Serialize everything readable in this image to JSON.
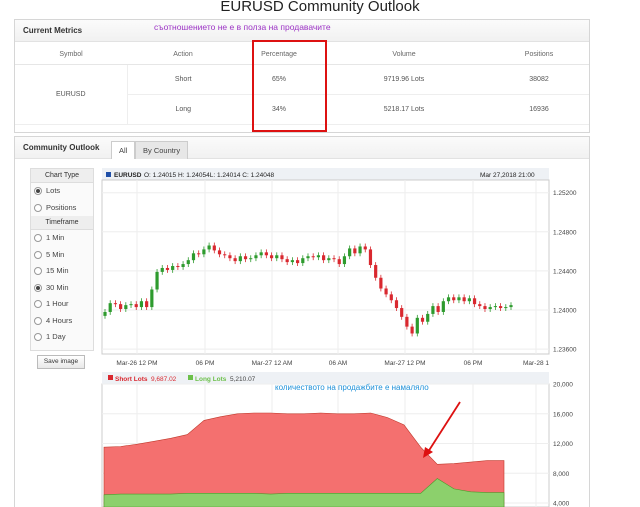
{
  "page_title": "EURUSD Community Outlook",
  "annotation_top": "съотношението не е в полза на продавачите",
  "annotation_bottom": "количеството на продажбите е намаляло",
  "current_metrics": {
    "title": "Current Metrics",
    "headers": [
      "Symbol",
      "Action",
      "Percentage",
      "Volume",
      "Positions"
    ],
    "symbol": "EURUSD",
    "rows": [
      {
        "action": "Short",
        "percentage": "65%",
        "volume": "9719.96 Lots",
        "positions": "38082"
      },
      {
        "action": "Long",
        "percentage": "34%",
        "volume": "5218.17 Lots",
        "positions": "16936"
      }
    ]
  },
  "community_outlook": {
    "title": "Community Outlook",
    "tabs": [
      "All",
      "By Country"
    ],
    "active_tab": "All",
    "chart_type_title": "Chart Type",
    "chart_types": [
      {
        "label": "Lots",
        "selected": true
      },
      {
        "label": "Positions",
        "selected": false
      }
    ],
    "timeframe_title": "Timeframe",
    "timeframes": [
      {
        "label": "1 Min",
        "selected": false
      },
      {
        "label": "5 Min",
        "selected": false
      },
      {
        "label": "15 Min",
        "selected": false
      },
      {
        "label": "30 Min",
        "selected": true
      },
      {
        "label": "1 Hour",
        "selected": false
      },
      {
        "label": "4 Hours",
        "selected": false
      },
      {
        "label": "1 Day",
        "selected": false
      }
    ],
    "save_label": "Save image"
  },
  "colors": {
    "up": "#2e9b2e",
    "down": "#d9282f",
    "short_fill": "#f4706f",
    "long_fill": "#8cd06c",
    "annotation_blue": "#1e90d8",
    "annotation_purple": "#9c33c5"
  },
  "chart_data": [
    {
      "type": "candlestick",
      "symbol_label": "EURUSD",
      "ohlc_label": "O: 1.24015 H: 1.24054L: 1.24014 C: 1.24048",
      "timestamp": "Mar 27,2018 21:00",
      "x_ticks": [
        "Mar-26 12 PM",
        "06 PM",
        "Mar-27 12 AM",
        "06 AM",
        "Mar-27 12 PM",
        "06 PM",
        "Mar-28 1"
      ],
      "y_ticks": [
        "1.25200",
        "1.24800",
        "1.24400",
        "1.24000",
        "1.23600"
      ],
      "ylim": [
        1.2355,
        1.2533
      ],
      "closes": [
        1.2398,
        1.2407,
        1.2406,
        1.2401,
        1.2405,
        1.2406,
        1.2403,
        1.2409,
        1.2403,
        1.2421,
        1.2439,
        1.2443,
        1.2441,
        1.2445,
        1.2444,
        1.2447,
        1.2451,
        1.2458,
        1.2457,
        1.2462,
        1.2466,
        1.2461,
        1.2457,
        1.2456,
        1.2453,
        1.245,
        1.2455,
        1.2452,
        1.2453,
        1.2456,
        1.2459,
        1.2456,
        1.2453,
        1.2456,
        1.2452,
        1.2449,
        1.2451,
        1.2448,
        1.2453,
        1.2455,
        1.2454,
        1.2456,
        1.2451,
        1.2453,
        1.2452,
        1.2447,
        1.2455,
        1.2463,
        1.2458,
        1.2465,
        1.2462,
        1.2446,
        1.2433,
        1.2422,
        1.2416,
        1.241,
        1.2402,
        1.2393,
        1.2383,
        1.2376,
        1.2392,
        1.2388,
        1.2396,
        1.2404,
        1.2398,
        1.2409,
        1.2413,
        1.241,
        1.2413,
        1.2409,
        1.2412,
        1.2406,
        1.2404,
        1.2401,
        1.2403,
        1.2404,
        1.2402,
        1.2403,
        1.2405
      ]
    },
    {
      "type": "area",
      "series": [
        {
          "name": "Short Lots",
          "value_label": "9,687.02"
        },
        {
          "name": "Long Lots",
          "value_label": "5,210.07"
        }
      ],
      "y_ticks": [
        "20,000",
        "16,000",
        "12,000",
        "8,000",
        "4,000"
      ],
      "ylim": [
        4000,
        20000
      ],
      "short_values": [
        11500,
        11600,
        11900,
        12300,
        12700,
        13200,
        15100,
        15600,
        16000,
        16100,
        16100,
        16000,
        16000,
        16100,
        16000,
        16000,
        16100,
        15500,
        14500,
        11500,
        9200,
        9300,
        9500,
        9700,
        9700
      ],
      "long_values": [
        5100,
        5200,
        5200,
        5200,
        5200,
        5300,
        5300,
        5300,
        5300,
        5300,
        5200,
        5300,
        5300,
        5300,
        5300,
        5300,
        5300,
        5300,
        5300,
        5300,
        7300,
        5900,
        5500,
        5400,
        5400
      ]
    }
  ]
}
